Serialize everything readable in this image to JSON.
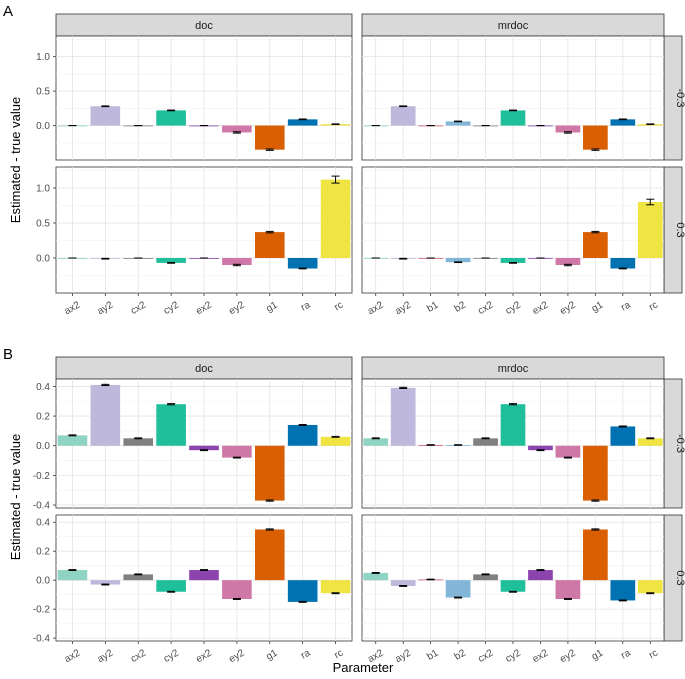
{
  "figure": {
    "xlabel": "Parameter",
    "ylabel": "Estimated - true value"
  },
  "colors": {
    "ax2": "#8fd3c4",
    "ay2": "#bdb8dc",
    "b1": "#d65e6e",
    "b2": "#82b6d9",
    "cx2": "#808080",
    "cy2": "#1fbf9b",
    "ex2": "#8b44ad",
    "ey2": "#cf78a8",
    "g1": "#d95f02",
    "ra": "#0072b2",
    "rc": "#f0e442"
  },
  "chart_data": [
    {
      "panel": "A",
      "type": "bar",
      "ylim": [
        -0.5,
        1.3
      ],
      "yticks": [
        0.0,
        0.5,
        1.0
      ],
      "grid": true,
      "legend": "none",
      "facets": [
        {
          "col": "doc",
          "row": "-0.3",
          "categories": [
            "ax2",
            "ay2",
            "cx2",
            "cy2",
            "ex2",
            "ey2",
            "g1",
            "ra",
            "rc"
          ],
          "values": [
            0.0,
            0.28,
            0.0,
            0.22,
            0.0,
            -0.1,
            -0.35,
            0.09,
            0.02
          ],
          "errors": [
            0,
            0.005,
            0,
            0.005,
            0,
            0.01,
            0.01,
            0.005,
            0.004
          ]
        },
        {
          "col": "mrdoc",
          "row": "-0.3",
          "categories": [
            "ax2",
            "ay2",
            "b1",
            "b2",
            "cx2",
            "cy2",
            "ex2",
            "ey2",
            "g1",
            "ra",
            "rc"
          ],
          "values": [
            0.0,
            0.28,
            0.0,
            0.06,
            0.0,
            0.22,
            0.0,
            -0.1,
            -0.35,
            0.09,
            0.02
          ],
          "errors": [
            0,
            0.005,
            0,
            0.005,
            0,
            0.005,
            0,
            0.01,
            0.01,
            0.005,
            0.004
          ]
        },
        {
          "col": "doc",
          "row": "0.3",
          "categories": [
            "ax2",
            "ay2",
            "cx2",
            "cy2",
            "ex2",
            "ey2",
            "g1",
            "ra",
            "rc"
          ],
          "values": [
            0.0,
            -0.01,
            0.0,
            -0.07,
            0.0,
            -0.1,
            0.37,
            -0.15,
            1.12
          ],
          "errors": [
            0,
            0.005,
            0,
            0.005,
            0,
            0.01,
            0.01,
            0.005,
            0.05
          ]
        },
        {
          "col": "mrdoc",
          "row": "0.3",
          "categories": [
            "ax2",
            "ay2",
            "b1",
            "b2",
            "cx2",
            "cy2",
            "ex2",
            "ey2",
            "g1",
            "ra",
            "rc"
          ],
          "values": [
            0.0,
            -0.01,
            0.0,
            -0.06,
            0.0,
            -0.07,
            0.0,
            -0.1,
            0.37,
            -0.15,
            0.8
          ],
          "errors": [
            0,
            0.005,
            0,
            0.005,
            0,
            0.005,
            0,
            0.01,
            0.01,
            0.005,
            0.04
          ]
        }
      ]
    },
    {
      "panel": "B",
      "type": "bar",
      "ylim": [
        -0.42,
        0.45
      ],
      "yticks": [
        -0.4,
        -0.2,
        0.0,
        0.2,
        0.4
      ],
      "grid": true,
      "legend": "none",
      "facets": [
        {
          "col": "doc",
          "row": "-0.3",
          "categories": [
            "ax2",
            "ay2",
            "cx2",
            "cy2",
            "ex2",
            "ey2",
            "g1",
            "ra",
            "rc"
          ],
          "values": [
            0.07,
            0.41,
            0.05,
            0.28,
            -0.03,
            -0.08,
            -0.37,
            0.14,
            0.06
          ],
          "errors": [
            0.003,
            0.004,
            0.003,
            0.004,
            0.003,
            0.003,
            0.004,
            0.003,
            0.003
          ]
        },
        {
          "col": "mrdoc",
          "row": "-0.3",
          "categories": [
            "ax2",
            "ay2",
            "b1",
            "b2",
            "cx2",
            "cy2",
            "ex2",
            "ey2",
            "g1",
            "ra",
            "rc"
          ],
          "values": [
            0.05,
            0.39,
            0.005,
            0.005,
            0.05,
            0.28,
            -0.03,
            -0.08,
            -0.37,
            0.13,
            0.05
          ],
          "errors": [
            0.003,
            0.004,
            0.002,
            0.002,
            0.003,
            0.004,
            0.003,
            0.003,
            0.004,
            0.003,
            0.003
          ]
        },
        {
          "col": "doc",
          "row": "0.3",
          "categories": [
            "ax2",
            "ay2",
            "cx2",
            "cy2",
            "ex2",
            "ey2",
            "g1",
            "ra",
            "rc"
          ],
          "values": [
            0.07,
            -0.03,
            0.04,
            -0.08,
            0.07,
            -0.13,
            0.35,
            -0.15,
            -0.09
          ],
          "errors": [
            0.003,
            0.003,
            0.003,
            0.003,
            0.003,
            0.003,
            0.004,
            0.003,
            0.003
          ]
        },
        {
          "col": "mrdoc",
          "row": "0.3",
          "categories": [
            "ax2",
            "ay2",
            "b1",
            "b2",
            "cx2",
            "cy2",
            "ex2",
            "ey2",
            "g1",
            "ra",
            "rc"
          ],
          "values": [
            0.05,
            -0.04,
            0.005,
            -0.12,
            0.04,
            -0.08,
            0.07,
            -0.13,
            0.35,
            -0.14,
            -0.09
          ],
          "errors": [
            0.003,
            0.003,
            0.002,
            0.003,
            0.003,
            0.003,
            0.003,
            0.003,
            0.004,
            0.003,
            0.003
          ]
        }
      ]
    }
  ]
}
